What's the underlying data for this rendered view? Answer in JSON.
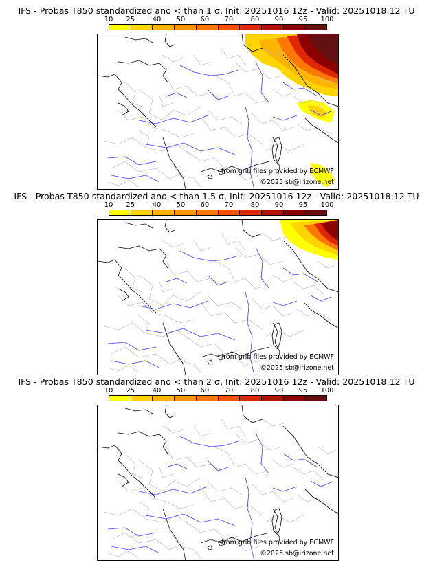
{
  "colorbar": {
    "labels": [
      "10",
      "25",
      "40",
      "50",
      "60",
      "70",
      "80",
      "90",
      "95",
      "100"
    ],
    "colors": [
      "#ffff00",
      "#ffd400",
      "#ffb400",
      "#ff9600",
      "#ff7800",
      "#ff5000",
      "#e02800",
      "#b41000",
      "#8c0000",
      "#641010"
    ]
  },
  "credits": {
    "source": "from grib files provided by ECMWF",
    "copyright": "©2025 sb@irizone.net"
  },
  "panels": [
    {
      "title": "IFS - Probas T850  standardized ano < than 1 σ, Init: 20251016 12z - Valid: 20251018:12 TU",
      "threshold_sigma": 1
    },
    {
      "title": "IFS - Probas T850  standardized ano < than 1.5 σ, Init: 20251016 12z - Valid: 20251018:12 TU",
      "threshold_sigma": 1.5
    },
    {
      "title": "IFS - Probas T850  standardized ano < than 2 σ, Init: 20251016 12z - Valid: 20251018:12 TU",
      "threshold_sigma": 2
    }
  ]
}
